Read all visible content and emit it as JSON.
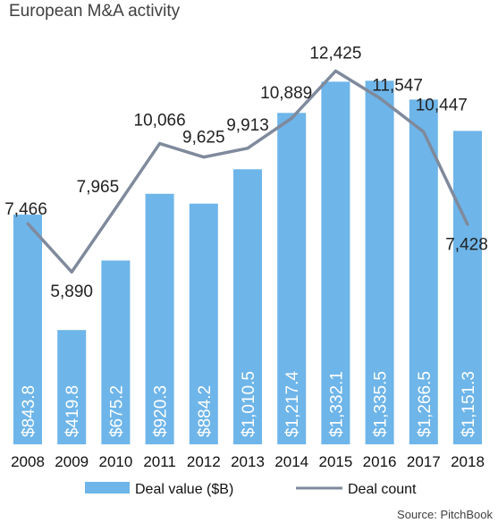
{
  "title": "European M&A activity",
  "source": "Source: PitchBook",
  "chart_data": {
    "type": "bar",
    "title": "European M&A activity",
    "categories": [
      "2008",
      "2009",
      "2010",
      "2011",
      "2012",
      "2013",
      "2014",
      "2015",
      "2016",
      "2017",
      "2018"
    ],
    "series": [
      {
        "name": "Deal value ($B)",
        "type": "bar",
        "color": "#6EB5E9",
        "values": [
          843.8,
          419.8,
          675.2,
          920.3,
          884.2,
          1010.5,
          1217.4,
          1332.1,
          1335.5,
          1266.5,
          1151.3
        ],
        "labels": [
          "$843.8",
          "$419.8",
          "$675.2",
          "$920.3",
          "$884.2",
          "$1,010.5",
          "$1,217.4",
          "$1,332.1",
          "$1,335.5",
          "$1,266.5",
          "$1,151.3"
        ]
      },
      {
        "name": "Deal count",
        "type": "line",
        "color": "#7F8A9C",
        "values": [
          7466,
          5890,
          7965,
          10066,
          9625,
          9913,
          10889,
          12425,
          11547,
          10447,
          7428
        ],
        "labels": [
          "7,466",
          "5,890",
          "7,965",
          "10,066",
          "9,625",
          "9,913",
          "10,889",
          "12,425",
          "11,547",
          "10,447",
          "7,428"
        ]
      }
    ],
    "legend": [
      "Deal value ($B)",
      "Deal count"
    ],
    "legend_position": "bottom",
    "grid": false
  }
}
